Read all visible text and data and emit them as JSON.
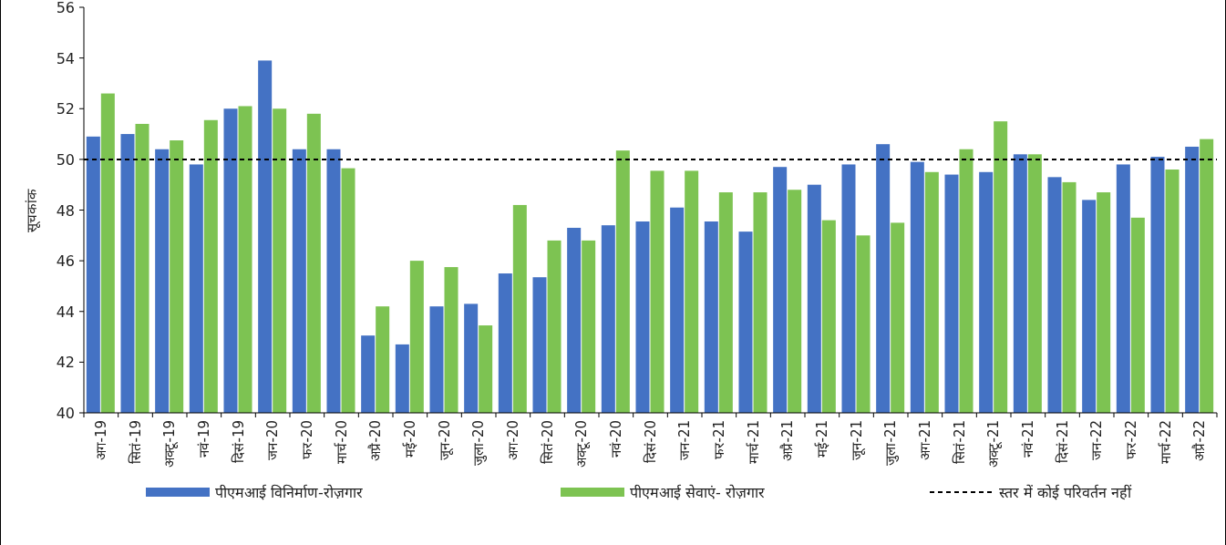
{
  "chart_data": {
    "type": "bar",
    "ylabel": "सूचकांक",
    "ylim": [
      40,
      56
    ],
    "yticks": [
      40,
      42,
      44,
      46,
      48,
      50,
      52,
      54,
      56
    ],
    "legend": "bottom",
    "grid": false,
    "categories": [
      "अग-19",
      "सितं-19",
      "अक्टू-19",
      "नवं-19",
      "दिसं-19",
      "जन-20",
      "फर-20",
      "मार्च-20",
      "अप्रै-20",
      "मई-20",
      "जून-20",
      "जुला-20",
      "अग-20",
      "सितं-20",
      "अक्टू-20",
      "नवं-20",
      "दिसं-20",
      "जन-21",
      "फर-21",
      "मार्च-21",
      "अप्रै-21",
      "मई-21",
      "जून-21",
      "जुला-21",
      "अग-21",
      "सितं-21",
      "अक्टू-21",
      "नवं-21",
      "दिसं-21",
      "जन-22",
      "फर-22",
      "मार्च-22",
      "अप्रै-22"
    ],
    "series": [
      {
        "name": "पीएमआई विनिर्माण-रोज़गार",
        "color": "#4472c4",
        "values": [
          50.9,
          51.0,
          50.4,
          49.8,
          52.0,
          53.9,
          50.4,
          50.4,
          43.05,
          42.7,
          44.2,
          44.3,
          45.5,
          45.35,
          47.3,
          47.4,
          47.55,
          48.1,
          47.55,
          47.15,
          49.7,
          49.0,
          49.8,
          50.6,
          49.9,
          49.4,
          49.5,
          50.2,
          49.3,
          48.4,
          49.8,
          50.1,
          50.5
        ]
      },
      {
        "name": "पीएमआई सेवाएं- रोज़गार",
        "color": "#7dc352",
        "values": [
          52.6,
          51.4,
          50.75,
          51.55,
          52.1,
          52.0,
          51.8,
          49.65,
          44.2,
          46.0,
          45.75,
          43.45,
          48.2,
          46.8,
          46.8,
          50.35,
          49.55,
          49.55,
          48.7,
          48.7,
          48.8,
          47.6,
          47.0,
          47.5,
          49.5,
          50.4,
          51.5,
          50.2,
          49.1,
          48.7,
          47.7,
          49.6,
          50.8
        ]
      }
    ],
    "ref_lines": [
      {
        "axis": "y",
        "value": 50,
        "label": "स्तर में कोई परिवर्तन नहीं",
        "color": "#000000",
        "line_style": "dashed"
      }
    ]
  }
}
